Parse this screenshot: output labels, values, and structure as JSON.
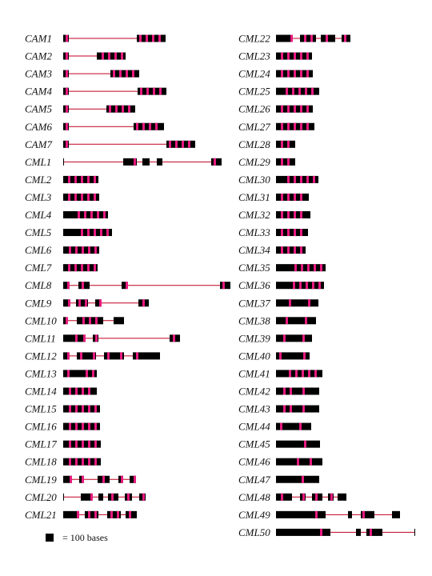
{
  "colors": {
    "exon": "#000000",
    "junction": "#e8197e",
    "intron": "#c00020"
  },
  "legend": {
    "label": "= 100 bases"
  },
  "genes": [
    {
      "name": "CAM1",
      "exons": [
        [
          0,
          7
        ],
        [
          92,
          128
        ]
      ],
      "marks": [
        3,
        95,
        103,
        111,
        119
      ]
    },
    {
      "name": "CAM2",
      "exons": [
        [
          0,
          7
        ],
        [
          42,
          78
        ]
      ],
      "marks": [
        3,
        48,
        56,
        64,
        72
      ]
    },
    {
      "name": "CAM3",
      "exons": [
        [
          0,
          7
        ],
        [
          59,
          95
        ]
      ],
      "marks": [
        3,
        62,
        70,
        78,
        86
      ]
    },
    {
      "name": "CAM4",
      "exons": [
        [
          0,
          7
        ],
        [
          93,
          129
        ]
      ],
      "marks": [
        3,
        96,
        104,
        112,
        120
      ]
    },
    {
      "name": "CAM5",
      "exons": [
        [
          0,
          7
        ],
        [
          54,
          90
        ]
      ],
      "marks": [
        3,
        57,
        65,
        73,
        81
      ]
    },
    {
      "name": "CAM6",
      "exons": [
        [
          0,
          7
        ],
        [
          88,
          126
        ]
      ],
      "marks": [
        3,
        91,
        99,
        107,
        115
      ]
    },
    {
      "name": "CAM7",
      "exons": [
        [
          0,
          7
        ],
        [
          129,
          165
        ]
      ],
      "marks": [
        3,
        132,
        140,
        148,
        156
      ]
    },
    {
      "name": "CML1",
      "exons": [
        [
          0,
          1
        ],
        [
          75,
          92
        ],
        [
          99,
          108
        ],
        [
          117,
          124
        ],
        [
          185,
          198
        ]
      ],
      "marks": [
        88,
        188
      ]
    },
    {
      "name": "CML2",
      "exons": [
        [
          0,
          44
        ]
      ],
      "marks": [
        6,
        14,
        22,
        30,
        38
      ]
    },
    {
      "name": "CML3",
      "exons": [
        [
          0,
          45
        ]
      ],
      "marks": [
        6,
        14,
        22,
        30,
        38
      ]
    },
    {
      "name": "CML4",
      "exons": [
        [
          0,
          56
        ]
      ],
      "marks": [
        18,
        26,
        34,
        42,
        50
      ]
    },
    {
      "name": "CML5",
      "exons": [
        [
          0,
          61
        ]
      ],
      "marks": [
        22,
        30,
        38,
        46,
        54
      ]
    },
    {
      "name": "CML6",
      "exons": [
        [
          0,
          45
        ]
      ],
      "marks": [
        7,
        15,
        23,
        31,
        39
      ]
    },
    {
      "name": "CML7",
      "exons": [
        [
          0,
          43
        ]
      ],
      "marks": [
        6,
        14,
        22,
        30,
        38
      ]
    },
    {
      "name": "CML8",
      "exons": [
        [
          0,
          8
        ],
        [
          19,
          33
        ],
        [
          73,
          80
        ],
        [
          196,
          209
        ]
      ],
      "marks": [
        5,
        23,
        78,
        199
      ]
    },
    {
      "name": "CML9",
      "exons": [
        [
          0,
          8
        ],
        [
          16,
          31
        ],
        [
          40,
          48
        ],
        [
          94,
          107
        ]
      ],
      "marks": [
        6,
        19,
        27,
        45,
        99
      ]
    },
    {
      "name": "CML10",
      "exons": [
        [
          0,
          4
        ],
        [
          17,
          50
        ],
        [
          63,
          76
        ]
      ],
      "marks": [
        3,
        24,
        32,
        40
      ]
    },
    {
      "name": "CML11",
      "exons": [
        [
          0,
          28
        ],
        [
          37,
          44
        ],
        [
          133,
          146
        ]
      ],
      "marks": [
        15,
        25,
        40,
        137
      ]
    },
    {
      "name": "CML12",
      "exons": [
        [
          0,
          7
        ],
        [
          17,
          41
        ],
        [
          51,
          76
        ],
        [
          87,
          121
        ]
      ],
      "marks": [
        5,
        21,
        37,
        55,
        71,
        91
      ]
    },
    {
      "name": "CML13",
      "exons": [
        [
          0,
          42
        ]
      ],
      "marks": [
        5,
        28,
        36
      ]
    },
    {
      "name": "CML14",
      "exons": [
        [
          0,
          42
        ]
      ],
      "marks": [
        7,
        15,
        23,
        31
      ]
    },
    {
      "name": "CML15",
      "exons": [
        [
          0,
          46
        ]
      ],
      "marks": [
        7,
        15,
        23,
        31,
        39
      ]
    },
    {
      "name": "CML16",
      "exons": [
        [
          0,
          46
        ]
      ],
      "marks": [
        7,
        15,
        23,
        31,
        39
      ]
    },
    {
      "name": "CML17",
      "exons": [
        [
          0,
          47
        ]
      ],
      "marks": [
        7,
        15,
        23,
        31,
        39
      ]
    },
    {
      "name": "CML18",
      "exons": [
        [
          0,
          47
        ]
      ],
      "marks": [
        7,
        15,
        23,
        31,
        39
      ]
    },
    {
      "name": "CML19",
      "exons": [
        [
          0,
          11
        ],
        [
          20,
          26
        ],
        [
          43,
          58
        ],
        [
          69,
          75
        ],
        [
          83,
          91
        ]
      ],
      "marks": [
        8,
        23,
        49,
        72,
        88
      ]
    },
    {
      "name": "CML20",
      "exons": [
        [
          0,
          1
        ],
        [
          22,
          36
        ],
        [
          44,
          50
        ],
        [
          56,
          69
        ],
        [
          77,
          86
        ],
        [
          95,
          103
        ]
      ],
      "marks": [
        34,
        60,
        80,
        99
      ]
    },
    {
      "name": "CML21",
      "exons": [
        [
          0,
          20
        ],
        [
          27,
          44
        ],
        [
          55,
          72
        ],
        [
          78,
          92
        ]
      ],
      "marks": [
        17,
        31,
        39,
        59,
        67,
        82
      ]
    },
    {
      "name": "CML22",
      "exons": [
        [
          0,
          19
        ],
        [
          30,
          50
        ],
        [
          56,
          74
        ],
        [
          82,
          93
        ]
      ],
      "marks": [
        18,
        35,
        43,
        62,
        85
      ]
    },
    {
      "name": "CML23",
      "exons": [
        [
          0,
          45
        ]
      ],
      "marks": [
        6,
        14,
        22,
        30,
        38
      ]
    },
    {
      "name": "CML24",
      "exons": [
        [
          0,
          46
        ]
      ],
      "marks": [
        6,
        14,
        22,
        30,
        38
      ]
    },
    {
      "name": "CML25",
      "exons": [
        [
          0,
          54
        ]
      ],
      "marks": [
        12,
        20,
        28,
        36,
        44
      ]
    },
    {
      "name": "CML26",
      "exons": [
        [
          0,
          46
        ]
      ],
      "marks": [
        6,
        14,
        22,
        30,
        38
      ]
    },
    {
      "name": "CML27",
      "exons": [
        [
          0,
          48
        ]
      ],
      "marks": [
        6,
        14,
        22,
        30,
        38
      ]
    },
    {
      "name": "CML28",
      "exons": [
        [
          0,
          24
        ]
      ],
      "marks": [
        6,
        14
      ]
    },
    {
      "name": "CML29",
      "exons": [
        [
          0,
          24
        ]
      ],
      "marks": [
        6,
        14
      ]
    },
    {
      "name": "CML30",
      "exons": [
        [
          0,
          53
        ]
      ],
      "marks": [
        14,
        22,
        30,
        38,
        46
      ]
    },
    {
      "name": "CML31",
      "exons": [
        [
          0,
          41
        ]
      ],
      "marks": [
        6,
        14,
        22,
        30
      ]
    },
    {
      "name": "CML32",
      "exons": [
        [
          0,
          43
        ]
      ],
      "marks": [
        6,
        14,
        22,
        30
      ]
    },
    {
      "name": "CML33",
      "exons": [
        [
          0,
          40
        ]
      ],
      "marks": [
        6,
        14,
        22,
        30
      ]
    },
    {
      "name": "CML34",
      "exons": [
        [
          0,
          37
        ]
      ],
      "marks": [
        6,
        14,
        22,
        30
      ]
    },
    {
      "name": "CML35",
      "exons": [
        [
          0,
          62
        ]
      ],
      "marks": [
        23,
        31,
        39,
        47,
        55
      ]
    },
    {
      "name": "CML36",
      "exons": [
        [
          0,
          60
        ]
      ],
      "marks": [
        21,
        29,
        37,
        45,
        53
      ]
    },
    {
      "name": "CML37",
      "exons": [
        [
          0,
          53
        ]
      ],
      "marks": [
        16,
        40
      ]
    },
    {
      "name": "CML38",
      "exons": [
        [
          0,
          50
        ]
      ],
      "marks": [
        12,
        36
      ]
    },
    {
      "name": "CML39",
      "exons": [
        [
          0,
          45
        ]
      ],
      "marks": [
        9,
        33
      ]
    },
    {
      "name": "CML40",
      "exons": [
        [
          0,
          42
        ]
      ],
      "marks": [
        4,
        34
      ]
    },
    {
      "name": "CML41",
      "exons": [
        [
          0,
          58
        ]
      ],
      "marks": [
        16,
        24,
        32,
        40,
        48
      ]
    },
    {
      "name": "CML42",
      "exons": [
        [
          0,
          54
        ]
      ],
      "marks": [
        9,
        17,
        33
      ]
    },
    {
      "name": "CML43",
      "exons": [
        [
          0,
          54
        ]
      ],
      "marks": [
        9,
        17,
        33
      ]
    },
    {
      "name": "CML44",
      "exons": [
        [
          0,
          44
        ]
      ],
      "marks": [
        5,
        29
      ]
    },
    {
      "name": "CML45",
      "exons": [
        [
          0,
          55
        ]
      ],
      "marks": [
        35
      ]
    },
    {
      "name": "CML46",
      "exons": [
        [
          0,
          58
        ]
      ],
      "marks": [
        26,
        42
      ]
    },
    {
      "name": "CML47",
      "exons": [
        [
          0,
          54
        ]
      ],
      "marks": [
        32
      ]
    },
    {
      "name": "CML48",
      "exons": [
        [
          0,
          20
        ],
        [
          30,
          37
        ],
        [
          45,
          58
        ],
        [
          65,
          72
        ],
        [
          77,
          88
        ]
      ],
      "marks": [
        6,
        33,
        49,
        68
      ]
    },
    {
      "name": "CML49",
      "exons": [
        [
          0,
          62
        ],
        [
          90,
          95
        ],
        [
          106,
          123
        ],
        [
          145,
          155
        ]
      ],
      "marks": [
        49,
        108
      ]
    },
    {
      "name": "CML50",
      "exons": [
        [
          0,
          68
        ],
        [
          100,
          106
        ],
        [
          113,
          133
        ],
        [
          173,
          174
        ]
      ],
      "marks": [
        55,
        117
      ]
    }
  ]
}
